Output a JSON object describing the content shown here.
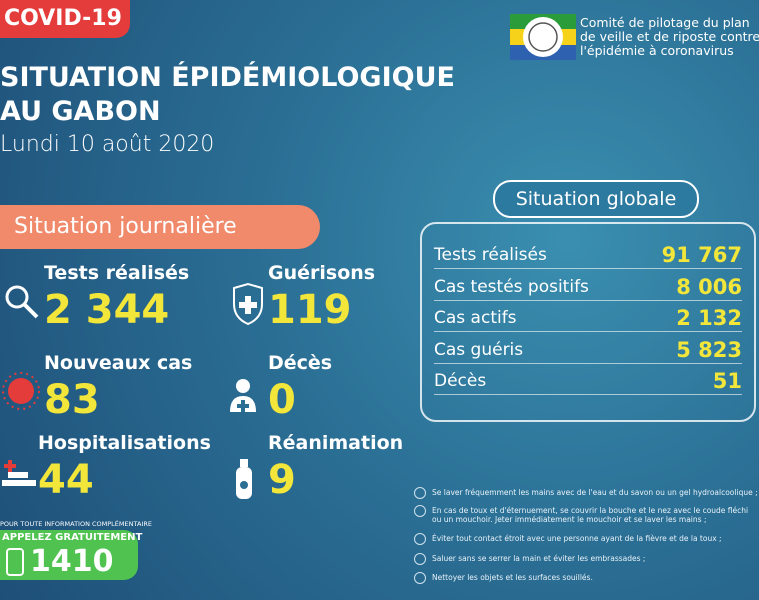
{
  "badge": "COVID-19",
  "title": {
    "line1": "SITUATION ÉPIDÉMIOLOGIQUE",
    "line2": "AU GABON",
    "date": "Lundi 10 août 2020"
  },
  "committee": [
    "Comité de pilotage du plan",
    "de veille et de riposte contre",
    "l'épidémie à coronavirus"
  ],
  "daily": {
    "heading": "Situation journalière",
    "items": [
      {
        "label": "Tests réalisés",
        "value": "2 344"
      },
      {
        "label": "Guérisons",
        "value": "119"
      },
      {
        "label": "Nouveaux cas",
        "value": "83"
      },
      {
        "label": "Décès",
        "value": "0"
      },
      {
        "label": "Hospitalisations",
        "value": "44"
      },
      {
        "label": "Réanimation",
        "value": "9"
      }
    ]
  },
  "global": {
    "heading": "Situation globale",
    "rows": [
      [
        "Tests réalisés",
        "91 767"
      ],
      [
        "Cas testés positifs",
        "8 006"
      ],
      [
        "Cas actifs",
        "2 132"
      ],
      [
        "Cas guéris",
        "5 823"
      ],
      [
        "Décès",
        "51"
      ]
    ]
  },
  "info": {
    "note": "POUR TOUTE INFORMATION COMPLÉMENTAIRE",
    "call": "APPELEZ GRATUITEMENT",
    "number": "1410"
  },
  "advice": [
    "Se laver fréquemment les mains avec de l'eau et du savon ou un gel hydroalcoolique ;",
    "En cas de toux et d'éternuement, se couvrir la bouche et le nez avec le coude fléchi ou un mouchoir. Jeter immédiatement le mouchoir et se laver les mains ;",
    "Éviter tout contact étroit avec une personne ayant de la fièvre et de la toux ;",
    "Saluer sans se serrer la main et éviter les embrassades ;",
    "Nettoyer les objets et les surfaces souillés."
  ]
}
